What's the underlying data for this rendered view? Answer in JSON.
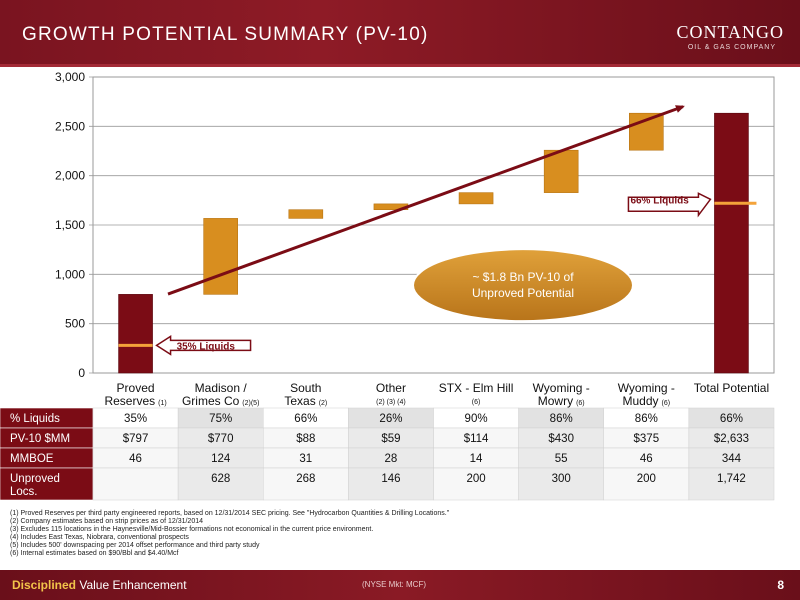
{
  "header": {
    "title": "GROWTH POTENTIAL SUMMARY (PV-10)"
  },
  "logo": {
    "name": "CONTANGO",
    "subtitle": "OIL & GAS COMPANY"
  },
  "chart_data": {
    "type": "bar",
    "subtype": "waterfall",
    "title": "",
    "xlabel": "",
    "ylabel": "",
    "ylim": [
      0,
      3000
    ],
    "yticks": [
      0,
      500,
      1000,
      1500,
      2000,
      2500,
      3000
    ],
    "ytick_labels": [
      "0",
      "500",
      "1,000",
      "1,500",
      "2,000",
      "2,500",
      "3,000"
    ],
    "grid": true,
    "colors": {
      "total": "#7b0c15",
      "increment": "#d88e1f",
      "arrow": "#7b0c15",
      "liquids_marker": "#f4a33a"
    },
    "categories": [
      {
        "line1": "Proved",
        "line2": "Reserves",
        "note": "(1)"
      },
      {
        "line1": "Madison /",
        "line2": "Grimes Co",
        "note": "(2)(5)"
      },
      {
        "line1": "South",
        "line2": "Texas",
        "note": "(2)"
      },
      {
        "line1": "Other",
        "line2": "",
        "note": "(2) (3) (4)"
      },
      {
        "line1": "STX - Elm Hill",
        "line2": "",
        "note": "(6)"
      },
      {
        "line1": "Wyoming -",
        "line2": "Mowry",
        "note": "(6)"
      },
      {
        "line1": "Wyoming -",
        "line2": "Muddy",
        "note": "(6)"
      },
      {
        "line1": "Total Potential",
        "line2": "",
        "note": ""
      }
    ],
    "bars": [
      {
        "kind": "total",
        "start": 0,
        "end": 797
      },
      {
        "kind": "increment",
        "start": 797,
        "end": 1567
      },
      {
        "kind": "increment",
        "start": 1567,
        "end": 1655
      },
      {
        "kind": "increment",
        "start": 1655,
        "end": 1714
      },
      {
        "kind": "increment",
        "start": 1714,
        "end": 1828
      },
      {
        "kind": "increment",
        "start": 1828,
        "end": 2258
      },
      {
        "kind": "increment",
        "start": 2258,
        "end": 2633
      },
      {
        "kind": "total",
        "start": 0,
        "end": 2633
      }
    ],
    "annotations": {
      "proved_liquids": {
        "label": "35% Liquids",
        "value": 280
      },
      "total_liquids": {
        "label": "66% Liquids",
        "value": 1720
      },
      "oval": {
        "line1": "~ $1.8 Bn PV-10 of",
        "line2": "Unproved  Potential"
      }
    }
  },
  "table": {
    "rows": [
      {
        "label": "% Liquids",
        "values": [
          "35%",
          "75%",
          "66%",
          "26%",
          "90%",
          "86%",
          "86%",
          "66%"
        ]
      },
      {
        "label": "PV-10 $MM",
        "values": [
          "$797",
          "$770",
          "$88",
          "$59",
          "$114",
          "$430",
          "$375",
          "$2,633"
        ]
      },
      {
        "label": "MMBOE",
        "values": [
          "46",
          "124",
          "31",
          "28",
          "14",
          "55",
          "46",
          "344"
        ]
      },
      {
        "label": "Unproved",
        "label2": "Locs.",
        "values": [
          "",
          "628",
          "268",
          "146",
          "200",
          "300",
          "200",
          "1,742"
        ]
      }
    ]
  },
  "footnotes": [
    "(1)   Proved Reserves per third party engineered reports, based on 12/31/2014 SEC pricing. See \"Hydrocarbon Quantities & Drilling Locations.\"",
    "(2)   Company estimates based on strip prices as of 12/31/2014",
    "(3)   Excludes 115 locations in the Haynesville/Mid-Bossier formations not economical in the current price environment.",
    "(4)   Includes East Texas, Niobrara, conventional prospects",
    "(5)   Includes 500' downspacing per 2014 offset performance and third party study",
    "(6)   Internal estimates based on $90/Bbl and $4.40/Mcf"
  ],
  "footer": {
    "bold": "Disciplined",
    "rest": " Value Enhancement",
    "center": "(NYSE Mkt: MCF)",
    "page": "8"
  }
}
